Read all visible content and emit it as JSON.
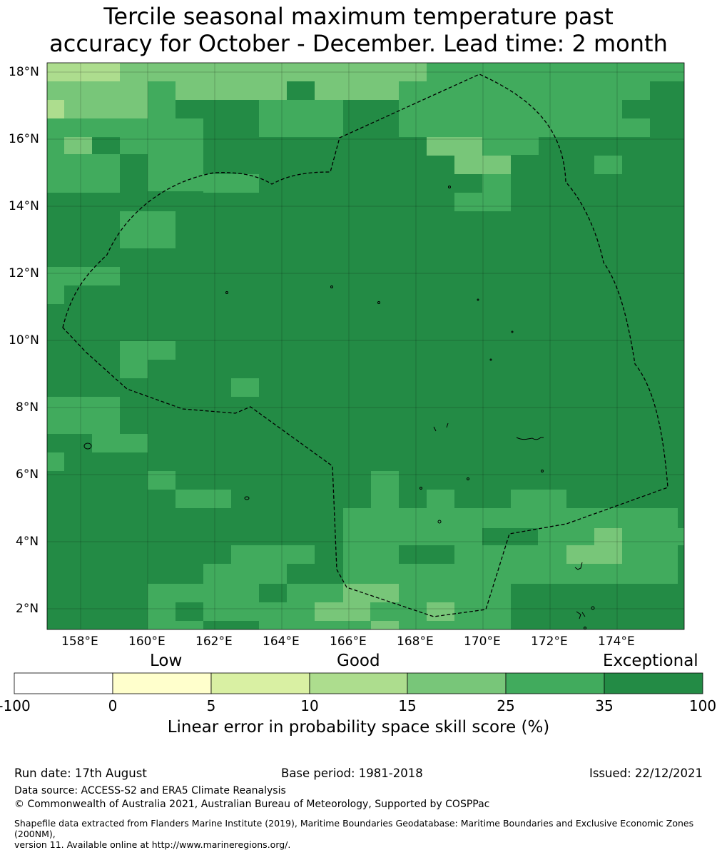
{
  "title_line1": "Tercile seasonal maximum temperature past",
  "title_line2": "accuracy for October - December. Lead time: 2 month",
  "map": {
    "lat_labels": [
      "18°N",
      "16°N",
      "14°N",
      "12°N",
      "10°N",
      "8°N",
      "6°N",
      "4°N",
      "2°N"
    ],
    "lon_labels": [
      "158°E",
      "160°E",
      "162°E",
      "164°E",
      "166°E",
      "168°E",
      "170°E",
      "172°E",
      "174°E"
    ],
    "colors": {
      "skill_35_100": "#238b45",
      "skill_25_35": "#41ab5d",
      "skill_15_25": "#78c679",
      "skill_10_15": "#addd8e",
      "skill_5_10": "#d9f0a3",
      "skill_0_5": "#ffffcc",
      "skill_neg": "#ffffff"
    }
  },
  "colorbar": {
    "category_low": "Low",
    "category_good": "Good",
    "category_exceptional": "Exceptional",
    "ticks": [
      "-100",
      "0",
      "5",
      "10",
      "15",
      "25",
      "35",
      "100"
    ],
    "colors": [
      "#ffffff",
      "#ffffcc",
      "#d9f0a3",
      "#addd8e",
      "#78c679",
      "#41ab5d",
      "#238b45"
    ],
    "title": "Linear error in probability space skill score (%)"
  },
  "footer": {
    "run_date": "Run date: 17th August",
    "base_period": "Base period: 1981-2018",
    "issued": "Issued: 22/12/2021",
    "data_source": "Data source: ACCESS-S2 and ERA5 Climate Reanalysis",
    "copyright": "© Commonwealth of Australia 2021, Australian Bureau of Meteorology, Supported by COSPPac",
    "shapefile_line1": "Shapefile data extracted from Flanders Marine Institute (2019), Maritime Boundaries Geodatabase: Maritime Boundaries and Exclusive Economic Zones (200NM),",
    "shapefile_line2": "version 11. Available online at http://www.marineregions.org/."
  }
}
